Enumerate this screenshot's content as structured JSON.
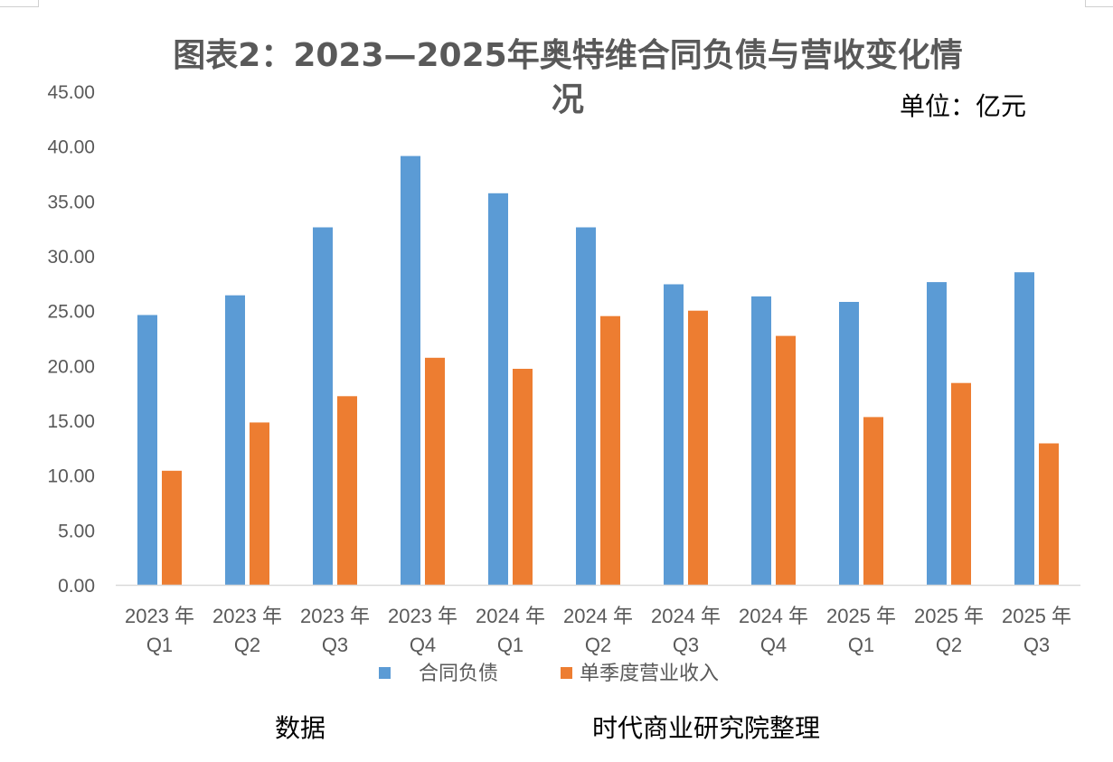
{
  "chart_data": {
    "type": "bar",
    "title_line1": "图表2：2023—2025年奥特维合同负债与营收变化情",
    "title_line2": "况",
    "unit_label": "单位：亿元",
    "categories": [
      {
        "year": "2023 年",
        "quarter": "Q1"
      },
      {
        "year": "2023 年",
        "quarter": "Q2"
      },
      {
        "year": "2023 年",
        "quarter": "Q3"
      },
      {
        "year": "2023 年",
        "quarter": "Q4"
      },
      {
        "year": "2024 年",
        "quarter": "Q1"
      },
      {
        "year": "2024 年",
        "quarter": "Q2"
      },
      {
        "year": "2024 年",
        "quarter": "Q3"
      },
      {
        "year": "2024 年",
        "quarter": "Q4"
      },
      {
        "year": "2025 年",
        "quarter": "Q1"
      },
      {
        "year": "2025 年",
        "quarter": "Q2"
      },
      {
        "year": "2025 年",
        "quarter": "Q3"
      }
    ],
    "series": [
      {
        "name": "合同负债",
        "color": "#5B9BD5",
        "values": [
          24.6,
          26.4,
          32.6,
          39.1,
          35.7,
          32.6,
          27.4,
          26.3,
          25.8,
          27.6,
          28.5
        ]
      },
      {
        "name": "单季度营业收入",
        "color": "#ED7D31",
        "values": [
          10.4,
          14.8,
          17.2,
          20.7,
          19.7,
          24.5,
          25.0,
          22.7,
          15.3,
          18.4,
          12.9
        ]
      }
    ],
    "ylim": [
      0,
      45
    ],
    "yticks": [
      "0.00",
      "5.00",
      "10.00",
      "15.00",
      "20.00",
      "25.00",
      "30.00",
      "35.00",
      "40.00",
      "45.00"
    ],
    "ytick_values": [
      0,
      5,
      10,
      15,
      20,
      25,
      30,
      35,
      40,
      45
    ],
    "xlabel": "",
    "ylabel": "",
    "grid": false,
    "legend_position": "bottom"
  },
  "footer": {
    "left": "数据",
    "right": "时代商业研究院整理"
  },
  "colors": {
    "axis": "#D9D9D9",
    "text": "#595959"
  }
}
